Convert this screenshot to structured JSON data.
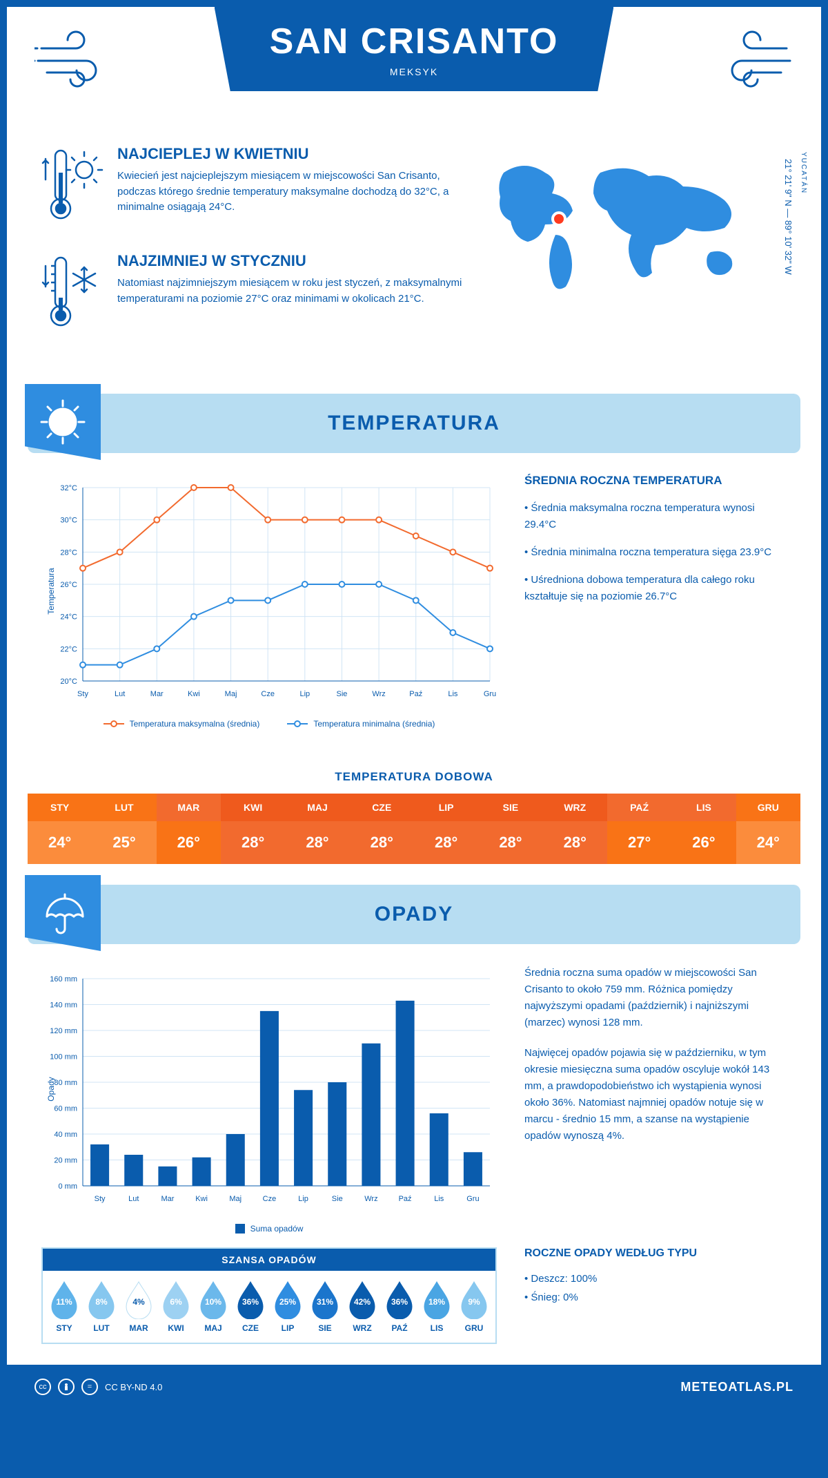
{
  "header": {
    "title": "SAN CRISANTO",
    "subtitle": "MEKSYK"
  },
  "intro": {
    "hot": {
      "heading": "NAJCIEPLEJ W KWIETNIU",
      "text": "Kwiecień jest najcieplejszym miesiącem w miejscowości San Crisanto, podczas którego średnie temperatury maksymalne dochodzą do 32°C, a minimalne osiągają 24°C."
    },
    "cold": {
      "heading": "NAJZIMNIEJ W STYCZNIU",
      "text": "Natomiast najzimniejszym miesiącem w roku jest styczeń, z maksymalnymi temperaturami na poziomie 27°C oraz minimami w okolicach 21°C."
    },
    "region": "YUCATÁN",
    "coords": "21° 21' 9\" N — 89° 10' 32\" W"
  },
  "temperature": {
    "section_title": "TEMPERATURA",
    "chart": {
      "type": "line",
      "months": [
        "Sty",
        "Lut",
        "Mar",
        "Kwi",
        "Maj",
        "Cze",
        "Lip",
        "Sie",
        "Wrz",
        "Paź",
        "Lis",
        "Gru"
      ],
      "max_series": [
        27,
        28,
        30,
        32,
        32,
        30,
        30,
        30,
        30,
        29,
        28,
        27
      ],
      "min_series": [
        21,
        21,
        22,
        24,
        25,
        25,
        26,
        26,
        26,
        25,
        23,
        22
      ],
      "ylim": [
        20,
        32
      ],
      "ytick_step": 2,
      "max_color": "#f26a2e",
      "min_color": "#2f8de0",
      "grid_color": "#d0e4f5",
      "ylabel": "Temperatura",
      "legend_max": "Temperatura maksymalna (średnia)",
      "legend_min": "Temperatura minimalna (średnia)"
    },
    "side": {
      "heading": "ŚREDNIA ROCZNA TEMPERATURA",
      "b1": "• Średnia maksymalna roczna temperatura wynosi 29.4°C",
      "b2": "• Średnia minimalna roczna temperatura sięga 23.9°C",
      "b3": "• Uśredniona dobowa temperatura dla całego roku kształtuje się na poziomie 26.7°C"
    },
    "daily": {
      "title": "TEMPERATURA DOBOWA",
      "months": [
        "STY",
        "LUT",
        "MAR",
        "KWI",
        "MAJ",
        "CZE",
        "LIP",
        "SIE",
        "WRZ",
        "PAŹ",
        "LIS",
        "GRU"
      ],
      "values": [
        "24°",
        "25°",
        "26°",
        "28°",
        "28°",
        "28°",
        "28°",
        "28°",
        "28°",
        "27°",
        "26°",
        "24°"
      ],
      "head_colors": [
        "#f97316",
        "#f97316",
        "#f26a2e",
        "#ef5a1d",
        "#ef5a1d",
        "#ef5a1d",
        "#ef5a1d",
        "#ef5a1d",
        "#ef5a1d",
        "#f26a2e",
        "#f26a2e",
        "#f97316"
      ],
      "val_colors": [
        "#fb8c3c",
        "#fb8c3c",
        "#f97316",
        "#f26a2e",
        "#f26a2e",
        "#f26a2e",
        "#f26a2e",
        "#f26a2e",
        "#f26a2e",
        "#f97316",
        "#f97316",
        "#fb8c3c"
      ]
    }
  },
  "precip": {
    "section_title": "OPADY",
    "chart": {
      "type": "bar",
      "months": [
        "Sty",
        "Lut",
        "Mar",
        "Kwi",
        "Maj",
        "Cze",
        "Lip",
        "Sie",
        "Wrz",
        "Paź",
        "Lis",
        "Gru"
      ],
      "values": [
        32,
        24,
        15,
        22,
        40,
        135,
        74,
        80,
        110,
        143,
        56,
        26
      ],
      "ylim": [
        0,
        160
      ],
      "ytick_step": 20,
      "bar_color": "#0a5cad",
      "grid_color": "#d0e4f5",
      "ylabel": "Opady",
      "legend": "Suma opadów"
    },
    "text": {
      "p1": "Średnia roczna suma opadów w miejscowości San Crisanto to około 759 mm. Różnica pomiędzy najwyższymi opadami (październik) i najniższymi (marzec) wynosi 128 mm.",
      "p2": "Najwięcej opadów pojawia się w październiku, w tym okresie miesięczna suma opadów oscyluje wokół 143 mm, a prawdopodobieństwo ich wystąpienia wynosi około 36%. Natomiast najmniej opadów notuje się w marcu - średnio 15 mm, a szanse na wystąpienie opadów wynoszą 4%."
    },
    "chance": {
      "title": "SZANSA OPADÓW",
      "months": [
        "STY",
        "LUT",
        "MAR",
        "KWI",
        "MAJ",
        "CZE",
        "LIP",
        "SIE",
        "WRZ",
        "PAŹ",
        "LIS",
        "GRU"
      ],
      "values": [
        "11%",
        "8%",
        "4%",
        "6%",
        "10%",
        "36%",
        "25%",
        "31%",
        "42%",
        "36%",
        "18%",
        "9%"
      ],
      "fills": [
        "#5fb3ea",
        "#86c7ef",
        "#ffffff",
        "#9dd1f2",
        "#6bb8eb",
        "#0a5cad",
        "#2f8de0",
        "#1b75cc",
        "#0a5cad",
        "#0a5cad",
        "#4aa5e3",
        "#86c7ef"
      ],
      "text_dark": [
        false,
        false,
        true,
        false,
        false,
        false,
        false,
        false,
        false,
        false,
        false,
        false
      ]
    },
    "bytype": {
      "heading": "ROCZNE OPADY WEDŁUG TYPU",
      "l1": "• Deszcz: 100%",
      "l2": "• Śnieg: 0%"
    }
  },
  "footer": {
    "license": "CC BY-ND 4.0",
    "brand": "METEOATLAS.PL"
  }
}
